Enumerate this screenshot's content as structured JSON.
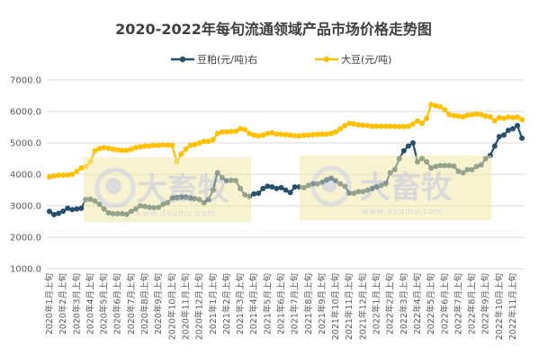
{
  "chart_data": {
    "type": "line",
    "title": "2020-2022年每旬流通领域产品市场价格走势图",
    "ylim": [
      1000,
      7000
    ],
    "yticks": [
      "1000.0",
      "2000.0",
      "3000.0",
      "4000.0",
      "5000.0",
      "6000.0",
      "7000.0"
    ],
    "grid": true,
    "legend_position": "top",
    "x_tick_labels": [
      "2020年1月上旬",
      "2020年2月上旬",
      "2020年3月上旬",
      "2020年4月上旬",
      "2020年5月上旬",
      "2020年6月上旬",
      "2020年7月上旬",
      "2020年8月上旬",
      "2020年9月上旬",
      "2020年10月上旬",
      "2020年11月上旬",
      "2020年12月上旬",
      "2021年1月上旬",
      "2021年2月上旬",
      "2021年3月上旬",
      "2021年4月上旬",
      "2021年5月上旬",
      "2021年6月上旬",
      "2021年7月上旬",
      "2021年8月上旬",
      "2021年9月上旬",
      "2021年10月上旬",
      "2021年11月上旬",
      "2021年12月上旬",
      "2022年1月上旬",
      "2022年2月上旬",
      "2022年3月上旬",
      "2022年4月上旬",
      "2022年5月上旬",
      "2022年6月上旬",
      "2022年7月上旬",
      "2022年8月上旬",
      "2022年9月上旬",
      "2022年10月上旬",
      "2022年11月上旬"
    ],
    "series": [
      {
        "name": "豆粕(元/吨)右",
        "color": "#264F6B",
        "values": [
          2820,
          2720,
          2760,
          2830,
          2920,
          2880,
          2900,
          2920,
          3200,
          3210,
          3150,
          3050,
          2900,
          2780,
          2750,
          2750,
          2750,
          2730,
          2820,
          2900,
          3000,
          2980,
          2950,
          2940,
          2950,
          3050,
          3100,
          3250,
          3260,
          3280,
          3280,
          3250,
          3230,
          3200,
          3100,
          3200,
          3500,
          4050,
          3900,
          3800,
          3810,
          3800,
          3550,
          3350,
          3300,
          3380,
          3400,
          3550,
          3620,
          3600,
          3550,
          3580,
          3500,
          3420,
          3600,
          3600,
          3580,
          3650,
          3700,
          3700,
          3750,
          3820,
          3880,
          3800,
          3700,
          3620,
          3400,
          3400,
          3450,
          3450,
          3500,
          3550,
          3600,
          3650,
          3700,
          4050,
          4150,
          4500,
          4750,
          4900,
          5000,
          4400,
          4500,
          4400,
          4200,
          4250,
          4280,
          4280,
          4280,
          4260,
          4100,
          4050,
          4150,
          4150,
          4250,
          4300,
          4500,
          4600,
          4900,
          5200,
          5250,
          5400,
          5450,
          5550,
          5150
        ]
      },
      {
        "name": "大豆(元/吨)",
        "color": "#FFC000",
        "values": [
          3920,
          3950,
          3970,
          3980,
          3980,
          4000,
          4100,
          4200,
          4250,
          4400,
          4750,
          4820,
          4850,
          4830,
          4800,
          4780,
          4760,
          4760,
          4800,
          4850,
          4880,
          4900,
          4900,
          4920,
          4920,
          4940,
          4930,
          4930,
          4400,
          4650,
          4800,
          4920,
          4950,
          5000,
          5050,
          5050,
          5100,
          5300,
          5350,
          5350,
          5360,
          5370,
          5450,
          5420,
          5300,
          5250,
          5220,
          5250,
          5300,
          5320,
          5280,
          5270,
          5260,
          5250,
          5230,
          5220,
          5240,
          5250,
          5260,
          5270,
          5280,
          5280,
          5300,
          5350,
          5450,
          5550,
          5620,
          5600,
          5580,
          5560,
          5550,
          5530,
          5530,
          5530,
          5530,
          5530,
          5520,
          5520,
          5520,
          5530,
          5600,
          5700,
          5620,
          5780,
          6220,
          6180,
          6150,
          6050,
          5900,
          5870,
          5850,
          5830,
          5880,
          5900,
          5920,
          5900,
          5850,
          5830,
          5700,
          5800,
          5780,
          5820,
          5800,
          5820,
          5740
        ]
      }
    ]
  },
  "watermark": {
    "brand": "大畜牧",
    "url": "www.dxumu.com"
  }
}
